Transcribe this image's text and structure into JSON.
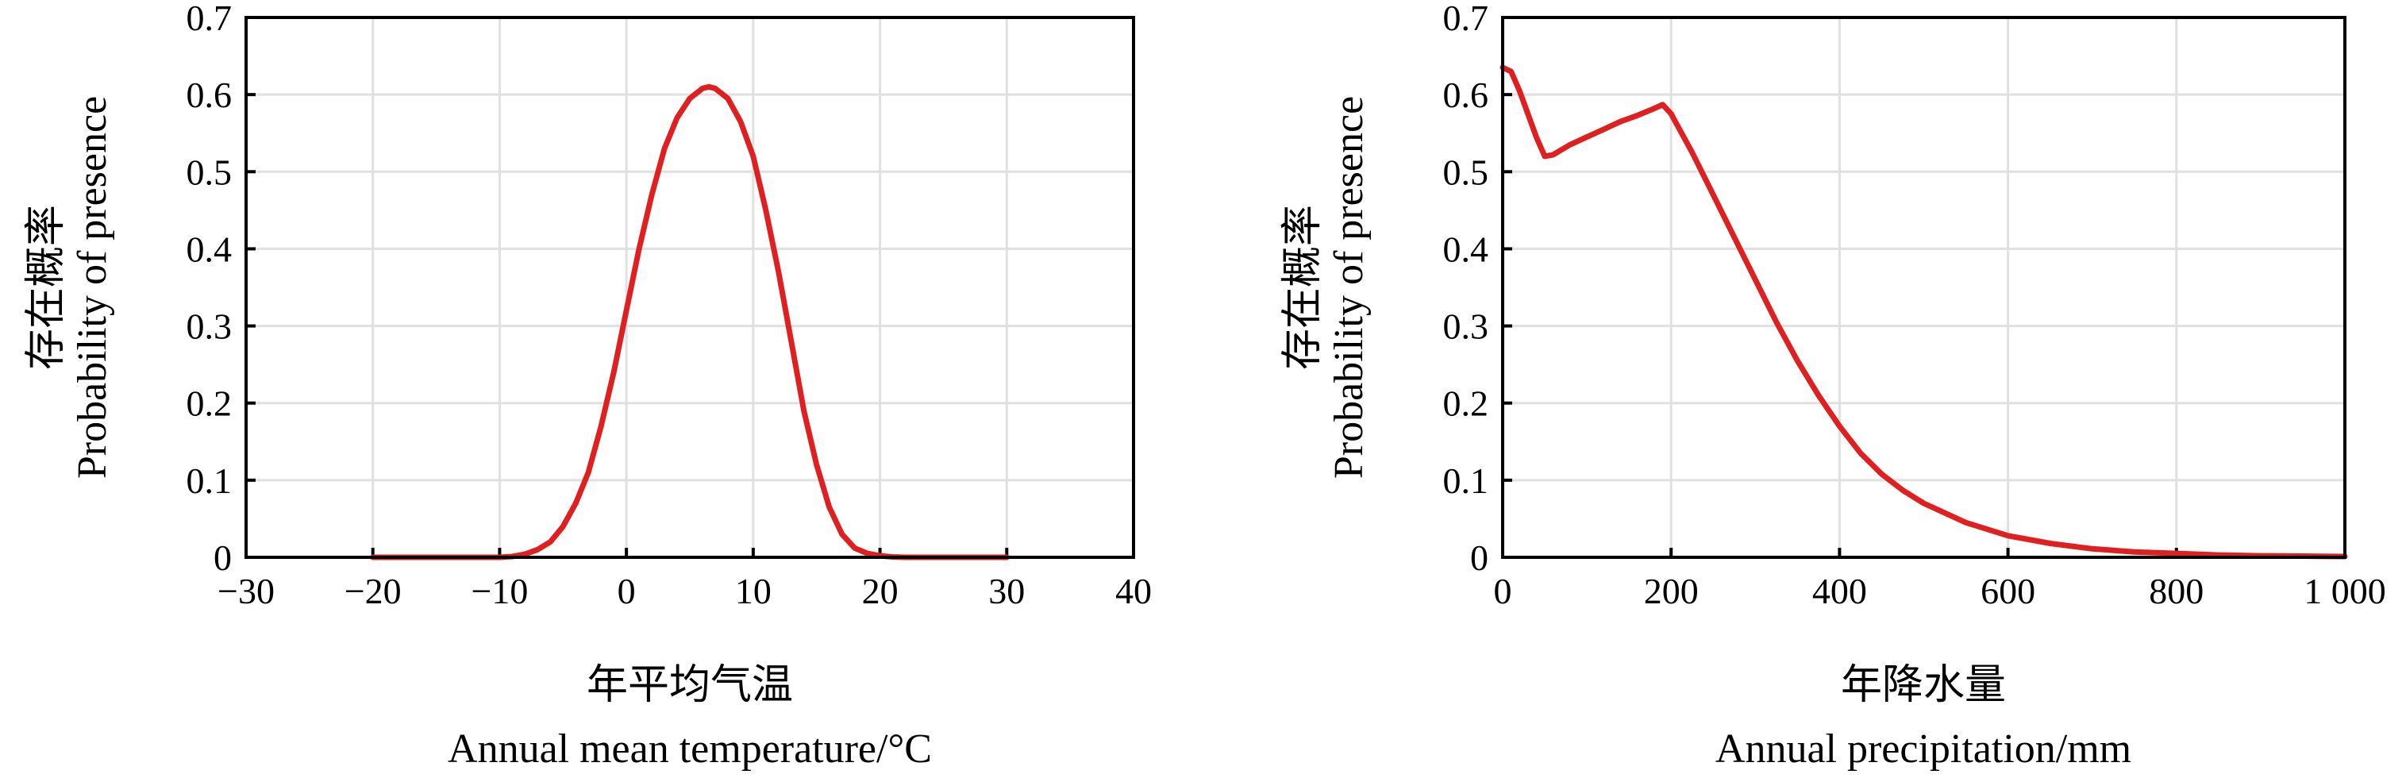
{
  "chart_data": [
    {
      "type": "line",
      "title": "",
      "xlabel_cn": "年平均气温",
      "xlabel_en": "Annual mean temperature/°C",
      "ylabel_cn": "存在概率",
      "ylabel_en": "Probability of presence",
      "xlim": [
        -30,
        40
      ],
      "ylim": [
        0,
        0.7
      ],
      "xticks": [
        -30,
        -20,
        -10,
        0,
        10,
        20,
        30,
        40
      ],
      "xtick_labels": [
        "−30",
        "−20",
        "−10",
        "0",
        "10",
        "20",
        "30",
        "40"
      ],
      "yticks": [
        0,
        0.1,
        0.2,
        0.3,
        0.4,
        0.5,
        0.6,
        0.7
      ],
      "ytick_labels": [
        "0",
        "0.1",
        "0.2",
        "0.3",
        "0.4",
        "0.5",
        "0.6",
        "0.7"
      ],
      "grid": true,
      "line_color": "#e02020",
      "series": [
        {
          "x": [
            -20,
            -10,
            -9,
            -8,
            -7,
            -6,
            -5,
            -4,
            -3,
            -2,
            -1,
            0,
            1,
            2,
            3,
            4,
            5,
            6,
            6.5,
            7,
            8,
            9,
            10,
            11,
            12,
            13,
            14,
            15,
            16,
            17,
            18,
            19,
            20,
            21,
            22,
            30
          ],
          "y": [
            0.0,
            0.0,
            0.001,
            0.004,
            0.01,
            0.02,
            0.04,
            0.07,
            0.11,
            0.17,
            0.24,
            0.32,
            0.4,
            0.47,
            0.53,
            0.57,
            0.595,
            0.608,
            0.61,
            0.608,
            0.595,
            0.565,
            0.52,
            0.45,
            0.37,
            0.28,
            0.19,
            0.12,
            0.065,
            0.03,
            0.012,
            0.005,
            0.002,
            0.0005,
            0.0,
            0.0
          ]
        }
      ]
    },
    {
      "type": "line",
      "title": "",
      "xlabel_cn": "年降水量",
      "xlabel_en": "Annual precipitation/mm",
      "ylabel_cn": "存在概率",
      "ylabel_en": "Probability of presence",
      "xlim": [
        0,
        1000
      ],
      "ylim": [
        0,
        0.7
      ],
      "xticks": [
        0,
        200,
        400,
        600,
        800,
        1000
      ],
      "xtick_labels": [
        "0",
        "200",
        "400",
        "600",
        "800",
        "1 000"
      ],
      "yticks": [
        0,
        0.1,
        0.2,
        0.3,
        0.4,
        0.5,
        0.6,
        0.7
      ],
      "ytick_labels": [
        "0",
        "0.1",
        "0.2",
        "0.3",
        "0.4",
        "0.5",
        "0.6",
        "0.7"
      ],
      "grid": true,
      "line_color": "#e02020",
      "series": [
        {
          "x": [
            0,
            10,
            20,
            30,
            40,
            50,
            60,
            80,
            100,
            120,
            140,
            160,
            180,
            190,
            200,
            225,
            250,
            275,
            300,
            325,
            350,
            375,
            400,
            425,
            450,
            475,
            500,
            550,
            600,
            650,
            700,
            750,
            800,
            850,
            900,
            950,
            1000
          ],
          "y": [
            0.635,
            0.63,
            0.605,
            0.575,
            0.545,
            0.52,
            0.522,
            0.535,
            0.545,
            0.555,
            0.565,
            0.573,
            0.582,
            0.587,
            0.575,
            0.525,
            0.47,
            0.415,
            0.36,
            0.305,
            0.255,
            0.21,
            0.17,
            0.135,
            0.108,
            0.087,
            0.07,
            0.045,
            0.028,
            0.018,
            0.011,
            0.007,
            0.005,
            0.003,
            0.002,
            0.0015,
            0.001
          ]
        }
      ]
    }
  ]
}
